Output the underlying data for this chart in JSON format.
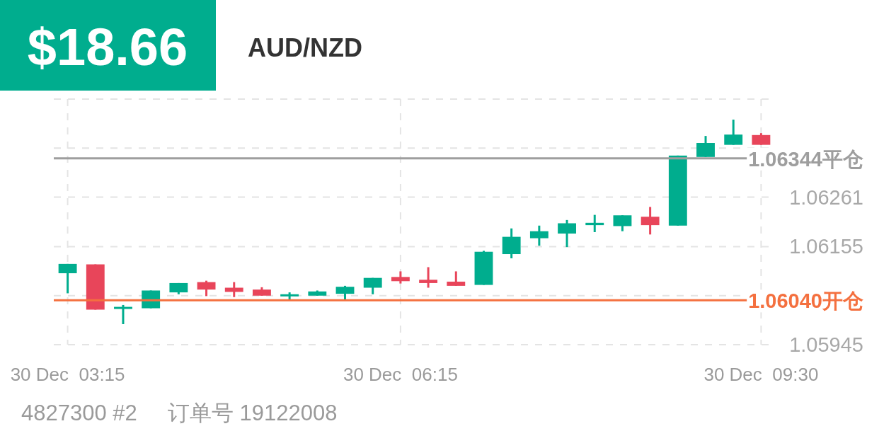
{
  "chart_data": {
    "type": "candlestick",
    "title": "AUD/NZD",
    "annotations": [
      "$18.66",
      "4827300 #2     订单号 19122008"
    ],
    "categories": [
      "30 Dec  03:15",
      null,
      null,
      null,
      null,
      null,
      null,
      null,
      null,
      null,
      null,
      null,
      "30 Dec  06:15",
      null,
      null,
      null,
      null,
      null,
      null,
      null,
      null,
      null,
      null,
      null,
      null,
      "30 Dec  09:30"
    ],
    "ohlc": [
      [
        1.06098,
        1.06118,
        1.06055,
        1.06118
      ],
      [
        1.06117,
        1.06117,
        1.0602,
        1.0602
      ],
      [
        1.06022,
        1.0603,
        1.05989,
        1.06026
      ],
      [
        1.06023,
        1.06061,
        1.06023,
        1.06061
      ],
      [
        1.06057,
        1.06077,
        1.06053,
        1.06077
      ],
      [
        1.06079,
        1.06082,
        1.06049,
        1.06063
      ],
      [
        1.06067,
        1.06079,
        1.06047,
        1.06058
      ],
      [
        1.06063,
        1.06068,
        1.0605,
        1.0605
      ],
      [
        1.06049,
        1.06057,
        1.06042,
        1.06053
      ],
      [
        1.0605,
        1.06061,
        1.0605,
        1.06059
      ],
      [
        1.06054,
        1.06071,
        1.06042,
        1.06069
      ],
      [
        1.06067,
        1.06088,
        1.06053,
        1.06088
      ],
      [
        1.0609,
        1.06102,
        1.06076,
        1.06081
      ],
      [
        1.06084,
        1.06111,
        1.06067,
        1.06077
      ],
      [
        1.0608,
        1.06102,
        1.06071,
        1.06071
      ],
      [
        1.06073,
        1.06146,
        1.06073,
        1.06144
      ],
      [
        1.06139,
        1.06194,
        1.0613,
        1.06176
      ],
      [
        1.06173,
        1.062,
        1.06157,
        1.06188
      ],
      [
        1.06183,
        1.06212,
        1.06154,
        1.06205
      ],
      [
        1.06201,
        1.06223,
        1.06186,
        1.06206
      ],
      [
        1.06199,
        1.06222,
        1.06188,
        1.06222
      ],
      [
        1.06219,
        1.0624,
        1.06181,
        1.06201
      ],
      [
        1.062,
        1.0635,
        1.062,
        1.0635
      ],
      [
        1.06347,
        1.06392,
        1.06347,
        1.06377
      ],
      [
        1.06373,
        1.06427,
        1.06373,
        1.06395
      ],
      [
        1.06394,
        1.06398,
        1.06373,
        1.06373
      ]
    ],
    "colors": [
      "#00ad8e",
      "#e8455a",
      "#00ad8e",
      "#00ad8e",
      "#00ad8e",
      "#e8455a",
      "#e8455a",
      "#e8455a",
      "#00ad8e",
      "#00ad8e",
      "#00ad8e",
      "#00ad8e",
      "#e8455a",
      "#e8455a",
      "#e8455a",
      "#00ad8e",
      "#00ad8e",
      "#00ad8e",
      "#00ad8e",
      "#00ad8e",
      "#00ad8e",
      "#e8455a",
      "#00ad8e",
      "#00ad8e",
      "#00ad8e",
      "#e8455a"
    ],
    "ylim": [
      1.05945,
      1.06471
    ],
    "yticks": [
      1.05945,
      {
        "value": 1.0605,
        "label": null
      },
      1.06155,
      1.06261,
      {
        "value": 1.06366,
        "label": null
      },
      {
        "value": 1.06471,
        "label": null
      }
    ],
    "grid": true,
    "ref_lines": [
      {
        "axis": "y",
        "value": 1.06344,
        "label": "1.06344平仓",
        "color": "#9e9e9e"
      },
      {
        "axis": "y",
        "value": 1.0604,
        "label": "1.06040开仓",
        "color": "#f4703f"
      }
    ]
  }
}
